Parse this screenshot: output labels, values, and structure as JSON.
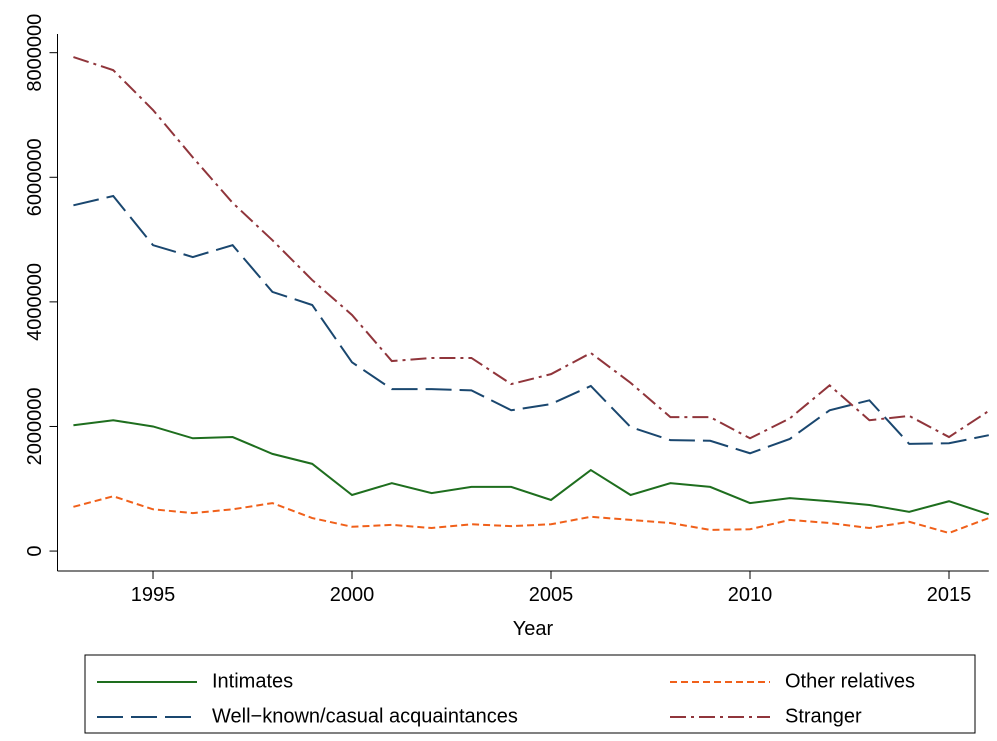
{
  "chart_data": {
    "type": "line",
    "x_label": "Year",
    "x": [
      1993,
      1994,
      1995,
      1996,
      1997,
      1998,
      1999,
      2000,
      2001,
      2002,
      2003,
      2004,
      2005,
      2006,
      2007,
      2008,
      2009,
      2010,
      2011,
      2012,
      2013,
      2014,
      2015,
      2016
    ],
    "xlim": [
      1992.6,
      2016.0
    ],
    "xticks": [
      1995,
      2000,
      2005,
      2010,
      2015
    ],
    "ylim": [
      -320000,
      8300000
    ],
    "yticks": [
      0,
      2000000,
      4000000,
      6000000,
      8000000
    ],
    "series": [
      {
        "name": "Intimates",
        "color": "#1e6e1e",
        "values": [
          2020000,
          2100000,
          2000000,
          1810000,
          1830000,
          1560000,
          1400000,
          900000,
          1090000,
          930000,
          1030000,
          1030000,
          820000,
          1300000,
          900000,
          1090000,
          1030000,
          770000,
          850000,
          800000,
          740000,
          630000,
          800000,
          590000
        ]
      },
      {
        "name": "Other relatives",
        "color": "#f0601a",
        "values": [
          710000,
          880000,
          670000,
          610000,
          670000,
          770000,
          530000,
          390000,
          420000,
          370000,
          430000,
          400000,
          430000,
          550000,
          500000,
          450000,
          340000,
          350000,
          500000,
          450000,
          370000,
          470000,
          290000,
          530000
        ]
      },
      {
        "name": "Well−known/casual acquaintances",
        "color": "#1a476f",
        "values": [
          5550000,
          5700000,
          4910000,
          4720000,
          4910000,
          4160000,
          3950000,
          3030000,
          2600000,
          2600000,
          2580000,
          2260000,
          2360000,
          2650000,
          1990000,
          1780000,
          1770000,
          1570000,
          1800000,
          2260000,
          2420000,
          1720000,
          1730000,
          1860000
        ]
      },
      {
        "name": "Stranger",
        "color": "#90353b",
        "values": [
          7930000,
          7720000,
          7080000,
          6320000,
          5590000,
          4990000,
          4350000,
          3790000,
          3050000,
          3100000,
          3100000,
          2680000,
          2840000,
          3180000,
          2700000,
          2150000,
          2150000,
          1810000,
          2130000,
          2660000,
          2100000,
          2170000,
          1830000,
          2250000
        ]
      }
    ]
  }
}
